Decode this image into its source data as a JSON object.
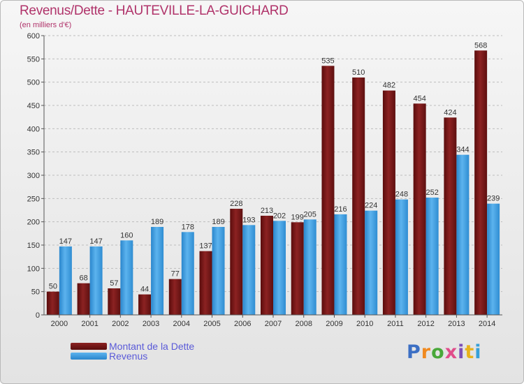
{
  "chart_data": {
    "type": "bar",
    "title": "Revenus/Dette - HAUTEVILLE-LA-GUICHARD",
    "subtitle": "(en milliers d'€)",
    "categories": [
      "2000",
      "2001",
      "2002",
      "2003",
      "2004",
      "2005",
      "2006",
      "2007",
      "2008",
      "2009",
      "2010",
      "2011",
      "2012",
      "2013",
      "2014"
    ],
    "series": [
      {
        "name": "Montant de la Dette",
        "color": "#7a1414",
        "values": [
          50,
          68,
          57,
          44,
          77,
          137,
          228,
          213,
          199,
          535,
          510,
          482,
          454,
          424,
          568
        ]
      },
      {
        "name": "Revenus",
        "color": "#3f9fe0",
        "values": [
          147,
          147,
          160,
          189,
          178,
          189,
          193,
          202,
          205,
          216,
          224,
          248,
          252,
          344,
          239
        ]
      }
    ],
    "yticks": [
      0,
      50,
      100,
      150,
      200,
      250,
      300,
      350,
      400,
      450,
      500,
      550,
      600
    ],
    "ylim": [
      0,
      600
    ],
    "grid": "horizontal dashed",
    "legend": "bottom-left"
  },
  "logo": {
    "parts": [
      "P",
      "r",
      "o",
      "x",
      "i",
      "t",
      "i"
    ]
  }
}
